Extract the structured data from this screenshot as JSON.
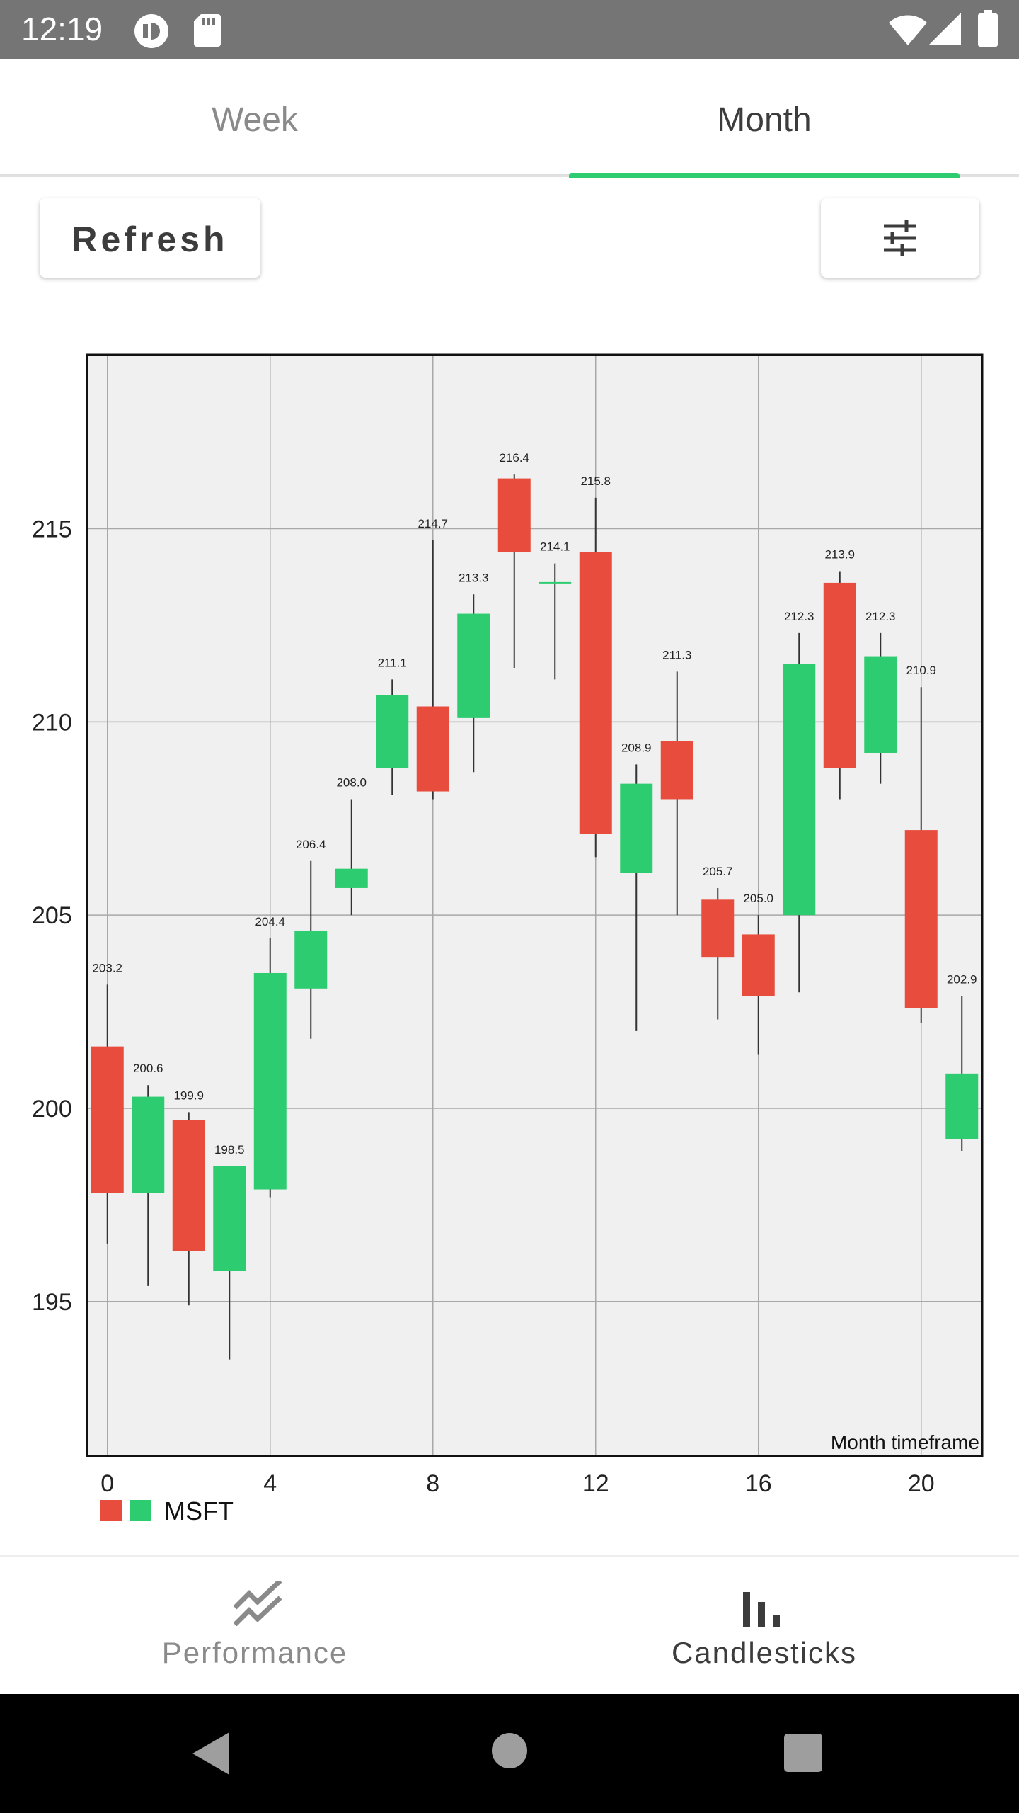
{
  "status_bar": {
    "time": "12:19",
    "icons": [
      "app-badge-icon",
      "sd-card-icon",
      "wifi-icon",
      "signal-icon",
      "battery-icon"
    ]
  },
  "tabs": [
    {
      "label": "Week",
      "selected": false
    },
    {
      "label": "Month",
      "selected": true
    }
  ],
  "toolbar": {
    "refresh_label": "Refresh",
    "filter_icon": "tune-icon"
  },
  "colors": {
    "up": "#2ecc71",
    "down": "#e74c3c",
    "accent": "#2ecc71"
  },
  "chart_data": {
    "type": "candlestick",
    "annotation": "Month timeframe",
    "legend": {
      "label": "MSFT",
      "placement": "bottom-left"
    },
    "xlim": [
      -0.5,
      21.5
    ],
    "ylim": [
      191,
      219.5
    ],
    "x_ticks": [
      0,
      4,
      8,
      12,
      16,
      20
    ],
    "y_ticks": [
      195,
      200,
      205,
      210,
      215
    ],
    "grid": true,
    "candles": [
      {
        "x": 0,
        "open": 201.6,
        "close": 197.8,
        "high": 203.2,
        "low": 196.5,
        "label": "203.2"
      },
      {
        "x": 1,
        "open": 197.8,
        "close": 200.3,
        "high": 200.6,
        "low": 195.4,
        "label": "200.6"
      },
      {
        "x": 2,
        "open": 199.7,
        "close": 196.3,
        "high": 199.9,
        "low": 194.9,
        "label": "199.9"
      },
      {
        "x": 3,
        "open": 195.8,
        "close": 198.5,
        "high": 198.5,
        "low": 193.5,
        "label": "198.5"
      },
      {
        "x": 4,
        "open": 197.9,
        "close": 203.5,
        "high": 204.4,
        "low": 197.7,
        "label": "204.4"
      },
      {
        "x": 5,
        "open": 203.1,
        "close": 204.6,
        "high": 206.4,
        "low": 201.8,
        "label": "206.4"
      },
      {
        "x": 6,
        "open": 205.7,
        "close": 206.2,
        "high": 208.0,
        "low": 205.0,
        "label": "208.0"
      },
      {
        "x": 7,
        "open": 208.8,
        "close": 210.7,
        "high": 211.1,
        "low": 208.1,
        "label": "211.1"
      },
      {
        "x": 8,
        "open": 210.4,
        "close": 208.2,
        "high": 214.7,
        "low": 208.0,
        "label": "214.7"
      },
      {
        "x": 9,
        "open": 210.1,
        "close": 212.8,
        "high": 213.3,
        "low": 208.7,
        "label": "213.3"
      },
      {
        "x": 10,
        "open": 216.3,
        "close": 214.4,
        "high": 216.4,
        "low": 211.4,
        "label": "216.4"
      },
      {
        "x": 11,
        "open": 213.6,
        "close": 213.6,
        "high": 214.1,
        "low": 211.1,
        "label": "214.1"
      },
      {
        "x": 12,
        "open": 214.4,
        "close": 207.1,
        "high": 215.8,
        "low": 206.5,
        "label": "215.8"
      },
      {
        "x": 13,
        "open": 206.1,
        "close": 208.4,
        "high": 208.9,
        "low": 202.0,
        "label": "208.9"
      },
      {
        "x": 14,
        "open": 209.5,
        "close": 208.0,
        "high": 211.3,
        "low": 205.0,
        "label": "211.3"
      },
      {
        "x": 15,
        "open": 205.4,
        "close": 203.9,
        "high": 205.7,
        "low": 202.3,
        "label": "205.7"
      },
      {
        "x": 16,
        "open": 204.5,
        "close": 202.9,
        "high": 205.0,
        "low": 201.4,
        "label": "205.0"
      },
      {
        "x": 17,
        "open": 205.0,
        "close": 211.5,
        "high": 212.3,
        "low": 203.0,
        "label": "212.3"
      },
      {
        "x": 18,
        "open": 213.6,
        "close": 208.8,
        "high": 213.9,
        "low": 208.0,
        "label": "213.9"
      },
      {
        "x": 19,
        "open": 209.2,
        "close": 211.7,
        "high": 212.3,
        "low": 208.4,
        "label": "212.3"
      },
      {
        "x": 20,
        "open": 207.2,
        "close": 202.6,
        "high": 210.9,
        "low": 202.2,
        "label": "210.9"
      },
      {
        "x": 21,
        "open": 199.2,
        "close": 200.9,
        "high": 202.9,
        "low": 198.9,
        "label": "202.9"
      }
    ]
  },
  "bottom_nav": [
    {
      "label": "Performance",
      "icon": "trending-icon",
      "selected": false
    },
    {
      "label": "Candlesticks",
      "icon": "bar-chart-icon",
      "selected": true
    }
  ],
  "system_nav": {
    "icons": [
      "back-icon",
      "home-icon",
      "recents-icon"
    ]
  }
}
